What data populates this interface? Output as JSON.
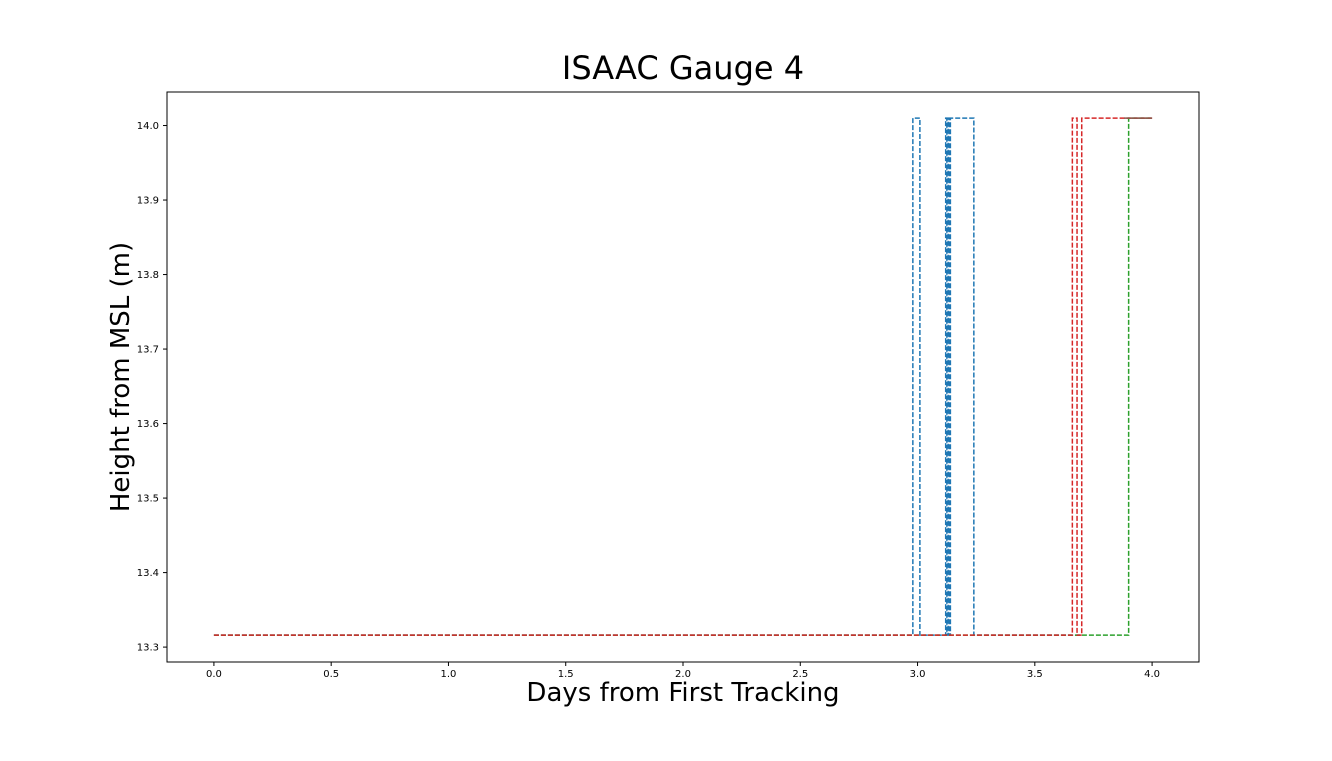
{
  "chart_data": {
    "type": "line",
    "title": "ISAAC Gauge 4",
    "xlabel": "Days from First Tracking",
    "ylabel": "Height from MSL (m)",
    "xlim": [
      -0.2,
      4.2
    ],
    "ylim": [
      13.28,
      14.045
    ],
    "xticks": [
      0.0,
      0.5,
      1.0,
      1.5,
      2.0,
      2.5,
      3.0,
      3.5,
      4.0
    ],
    "xtick_labels": [
      "0.0",
      "0.5",
      "1.0",
      "1.5",
      "2.0",
      "2.5",
      "3.0",
      "3.5",
      "4.0"
    ],
    "yticks": [
      13.3,
      13.4,
      13.5,
      13.6,
      13.7,
      13.8,
      13.9,
      14.0
    ],
    "ytick_labels": [
      "13.3",
      "13.4",
      "13.5",
      "13.6",
      "13.7",
      "13.8",
      "13.9",
      "14.0"
    ],
    "grid": false,
    "legend": "none",
    "series": [
      {
        "color": "#1f77b4",
        "line_style": "dashed",
        "x": [
          0.0,
          2.98,
          2.98,
          3.01,
          3.01,
          3.12,
          3.12,
          3.125,
          3.125,
          3.13,
          3.13,
          3.135,
          3.135,
          3.14,
          3.14,
          3.145,
          3.145,
          3.24,
          3.24,
          3.7
        ],
        "y": [
          13.316,
          13.316,
          14.01,
          14.01,
          13.316,
          13.316,
          14.01,
          14.01,
          13.316,
          13.316,
          14.01,
          14.01,
          13.316,
          13.316,
          14.01,
          14.01,
          14.01,
          14.01,
          13.316,
          13.316
        ]
      },
      {
        "color": "#2ca02c",
        "line_style": "dashed",
        "x": [
          0.0,
          3.9,
          3.9,
          4.0
        ],
        "y": [
          13.316,
          13.316,
          14.01,
          14.01
        ]
      },
      {
        "color": "#d62728",
        "line_style": "dashed",
        "x": [
          0.0,
          3.66,
          3.66,
          3.68,
          3.68,
          3.7,
          3.7,
          3.71,
          3.71,
          4.0
        ],
        "y": [
          13.316,
          13.316,
          14.01,
          14.01,
          13.316,
          13.316,
          14.01,
          14.01,
          14.01,
          14.01
        ]
      },
      {
        "color": "#8c564b",
        "line_style": "solid",
        "x": [
          3.88,
          4.0
        ],
        "y": [
          14.01,
          14.01
        ]
      }
    ]
  }
}
